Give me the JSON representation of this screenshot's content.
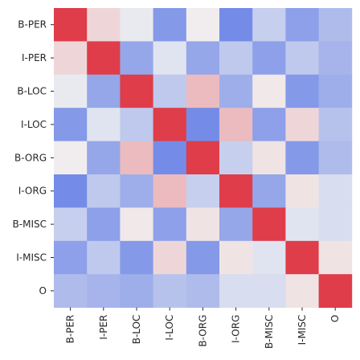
{
  "chart_data": {
    "type": "heatmap",
    "title": "",
    "xlabel": "",
    "ylabel": "",
    "rows": [
      "B-PER",
      "I-PER",
      "B-LOC",
      "I-LOC",
      "B-ORG",
      "I-ORG",
      "B-MISC",
      "I-MISC",
      "O"
    ],
    "columns": [
      "B-PER",
      "I-PER",
      "B-LOC",
      "I-LOC",
      "B-ORG",
      "I-ORG",
      "B-MISC",
      "I-MISC",
      "O"
    ],
    "values": [
      [
        1.0,
        0.15,
        -0.05,
        -0.65,
        0.02,
        -0.75,
        -0.25,
        -0.6,
        -0.4
      ],
      [
        0.15,
        1.0,
        -0.55,
        -0.1,
        -0.55,
        -0.3,
        -0.6,
        -0.3,
        -0.45
      ],
      [
        -0.05,
        -0.55,
        1.0,
        -0.3,
        0.3,
        -0.5,
        0.05,
        -0.65,
        -0.5
      ],
      [
        -0.65,
        -0.1,
        -0.3,
        1.0,
        -0.75,
        0.3,
        -0.6,
        0.15,
        -0.35
      ],
      [
        0.02,
        -0.55,
        0.3,
        -0.75,
        1.0,
        -0.25,
        0.08,
        -0.65,
        -0.4
      ],
      [
        -0.75,
        -0.3,
        -0.5,
        0.3,
        -0.25,
        1.0,
        -0.55,
        0.08,
        -0.15
      ],
      [
        -0.25,
        -0.6,
        0.05,
        -0.6,
        0.08,
        -0.55,
        1.0,
        -0.1,
        -0.15
      ],
      [
        -0.6,
        -0.3,
        -0.65,
        0.15,
        -0.65,
        0.08,
        -0.1,
        1.0,
        0.08
      ],
      [
        -0.4,
        -0.45,
        -0.5,
        -0.35,
        -0.4,
        -0.15,
        -0.15,
        0.08,
        1.0
      ]
    ],
    "value_range": [
      -1,
      1
    ],
    "colormap": {
      "low": "#4a6ae3",
      "mid": "#f1f1f1",
      "high": "#de3d49"
    },
    "grid": false,
    "legend": "none"
  }
}
